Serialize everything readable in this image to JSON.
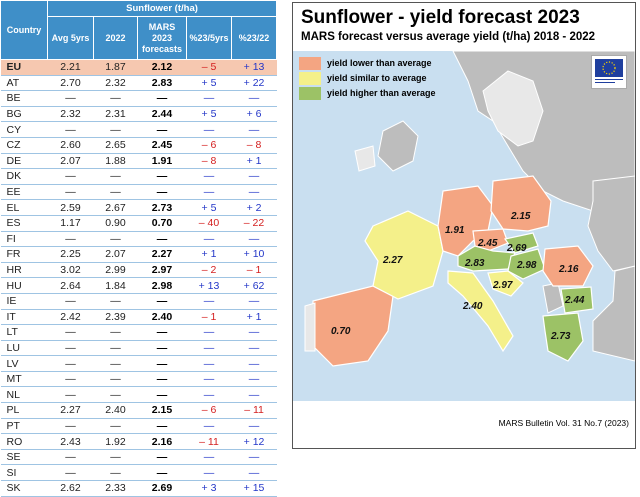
{
  "table": {
    "header": {
      "country": "Country",
      "group": "Sunflower (t/ha)",
      "avg": "Avg 5yrs",
      "y2022": "2022",
      "mars_l1": "MARS",
      "mars_l2": "2023",
      "mars_l3": "forecasts",
      "pct5": "%23/5yrs",
      "pct22": "%23/22"
    },
    "rows": [
      {
        "c": "EU",
        "avg": "2.21",
        "y22": "1.87",
        "mars": "2.12",
        "p5": "– 5",
        "p22": "+ 13"
      },
      {
        "c": "AT",
        "avg": "2.70",
        "y22": "2.32",
        "mars": "2.83",
        "p5": "+ 5",
        "p22": "+ 22"
      },
      {
        "c": "BE",
        "avg": "—",
        "y22": "—",
        "mars": "—",
        "p5": "—",
        "p22": "—"
      },
      {
        "c": "BG",
        "avg": "2.32",
        "y22": "2.31",
        "mars": "2.44",
        "p5": "+ 5",
        "p22": "+ 6"
      },
      {
        "c": "CY",
        "avg": "—",
        "y22": "—",
        "mars": "—",
        "p5": "—",
        "p22": "—"
      },
      {
        "c": "CZ",
        "avg": "2.60",
        "y22": "2.65",
        "mars": "2.45",
        "p5": "– 6",
        "p22": "– 8"
      },
      {
        "c": "DE",
        "avg": "2.07",
        "y22": "1.88",
        "mars": "1.91",
        "p5": "– 8",
        "p22": "+ 1"
      },
      {
        "c": "DK",
        "avg": "—",
        "y22": "—",
        "mars": "—",
        "p5": "—",
        "p22": "—"
      },
      {
        "c": "EE",
        "avg": "—",
        "y22": "—",
        "mars": "—",
        "p5": "—",
        "p22": "—"
      },
      {
        "c": "EL",
        "avg": "2.59",
        "y22": "2.67",
        "mars": "2.73",
        "p5": "+ 5",
        "p22": "+ 2"
      },
      {
        "c": "ES",
        "avg": "1.17",
        "y22": "0.90",
        "mars": "0.70",
        "p5": "– 40",
        "p22": "– 22"
      },
      {
        "c": "FI",
        "avg": "—",
        "y22": "—",
        "mars": "—",
        "p5": "—",
        "p22": "—"
      },
      {
        "c": "FR",
        "avg": "2.25",
        "y22": "2.07",
        "mars": "2.27",
        "p5": "+ 1",
        "p22": "+ 10"
      },
      {
        "c": "HR",
        "avg": "3.02",
        "y22": "2.99",
        "mars": "2.97",
        "p5": "– 2",
        "p22": "– 1"
      },
      {
        "c": "HU",
        "avg": "2.64",
        "y22": "1.84",
        "mars": "2.98",
        "p5": "+ 13",
        "p22": "+ 62"
      },
      {
        "c": "IE",
        "avg": "—",
        "y22": "—",
        "mars": "—",
        "p5": "—",
        "p22": "—"
      },
      {
        "c": "IT",
        "avg": "2.42",
        "y22": "2.39",
        "mars": "2.40",
        "p5": "– 1",
        "p22": "+ 1"
      },
      {
        "c": "LT",
        "avg": "—",
        "y22": "—",
        "mars": "—",
        "p5": "—",
        "p22": "—"
      },
      {
        "c": "LU",
        "avg": "—",
        "y22": "—",
        "mars": "—",
        "p5": "—",
        "p22": "—"
      },
      {
        "c": "LV",
        "avg": "—",
        "y22": "—",
        "mars": "—",
        "p5": "—",
        "p22": "—"
      },
      {
        "c": "MT",
        "avg": "—",
        "y22": "—",
        "mars": "—",
        "p5": "—",
        "p22": "—"
      },
      {
        "c": "NL",
        "avg": "—",
        "y22": "—",
        "mars": "—",
        "p5": "—",
        "p22": "—"
      },
      {
        "c": "PL",
        "avg": "2.27",
        "y22": "2.40",
        "mars": "2.15",
        "p5": "– 6",
        "p22": "– 11"
      },
      {
        "c": "PT",
        "avg": "—",
        "y22": "—",
        "mars": "—",
        "p5": "—",
        "p22": "—"
      },
      {
        "c": "RO",
        "avg": "2.43",
        "y22": "1.92",
        "mars": "2.16",
        "p5": "– 11",
        "p22": "+ 12"
      },
      {
        "c": "SE",
        "avg": "—",
        "y22": "—",
        "mars": "—",
        "p5": "—",
        "p22": "—"
      },
      {
        "c": "SI",
        "avg": "—",
        "y22": "—",
        "mars": "—",
        "p5": "—",
        "p22": "—"
      },
      {
        "c": "SK",
        "avg": "2.62",
        "y22": "2.33",
        "mars": "2.69",
        "p5": "+ 3",
        "p22": "+ 15"
      }
    ]
  },
  "map": {
    "title": "Sunflower - yield forecast 2023",
    "subtitle": "MARS forecast versus average yield (t/ha) 2018 - 2022",
    "legend": [
      {
        "label": "yield lower than average",
        "color": "#f4a582"
      },
      {
        "label": "yield similar to average",
        "color": "#f4f08a"
      },
      {
        "label": "yield higher than average",
        "color": "#9cc266"
      }
    ],
    "values": [
      {
        "country": "ES",
        "label": "0.70",
        "class": "lower"
      },
      {
        "country": "FR",
        "label": "2.27",
        "class": "similar"
      },
      {
        "country": "DE",
        "label": "1.91",
        "class": "lower"
      },
      {
        "country": "PL",
        "label": "2.15",
        "class": "lower"
      },
      {
        "country": "CZ",
        "label": "2.45",
        "class": "lower"
      },
      {
        "country": "SK",
        "label": "2.69",
        "class": "higher"
      },
      {
        "country": "AT",
        "label": "2.83",
        "class": "higher"
      },
      {
        "country": "HU",
        "label": "2.98",
        "class": "higher"
      },
      {
        "country": "RO",
        "label": "2.16",
        "class": "lower"
      },
      {
        "country": "HR",
        "label": "2.97",
        "class": "similar"
      },
      {
        "country": "IT",
        "label": "2.40",
        "class": "similar"
      },
      {
        "country": "BG",
        "label": "2.44",
        "class": "higher"
      },
      {
        "country": "EL",
        "label": "2.73",
        "class": "higher"
      }
    ],
    "footer": "MARS Bulletin Vol. 31 No.7 (2023)",
    "colors": {
      "sea": "#c9dff0",
      "non_eu": "#bdbdbd",
      "no_data": "#e8e8e8",
      "border": "#ffffff"
    }
  }
}
